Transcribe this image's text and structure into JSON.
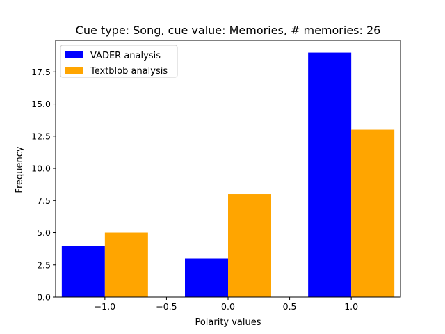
{
  "chart_data": {
    "type": "bar",
    "title": "Cue type: Song, cue value: Memories, # memories: 26",
    "xlabel": "Polarity values",
    "ylabel": "Frequency",
    "categories": [
      -1.0,
      0.0,
      1.0
    ],
    "series": [
      {
        "name": "VADER analysis",
        "color": "#0000ff",
        "values": [
          4,
          3,
          19
        ]
      },
      {
        "name": "Textblob analysis",
        "color": "#ffa500",
        "values": [
          5,
          8,
          13
        ]
      }
    ],
    "xlim": [
      -1.4,
      1.4
    ],
    "ylim": [
      0,
      19.95
    ],
    "xticks": [
      {
        "value": -1.0,
        "label": "−1.0"
      },
      {
        "value": -0.5,
        "label": "−0.5"
      },
      {
        "value": 0.0,
        "label": "0.0"
      },
      {
        "value": 0.5,
        "label": "0.5"
      },
      {
        "value": 1.0,
        "label": "1.0"
      }
    ],
    "yticks": [
      {
        "value": 0.0,
        "label": "0.0"
      },
      {
        "value": 2.5,
        "label": "2.5"
      },
      {
        "value": 5.0,
        "label": "5.0"
      },
      {
        "value": 7.5,
        "label": "7.5"
      },
      {
        "value": 10.0,
        "label": "10.0"
      },
      {
        "value": 12.5,
        "label": "12.5"
      },
      {
        "value": 15.0,
        "label": "15.0"
      },
      {
        "value": 17.5,
        "label": "17.5"
      }
    ],
    "bar_width": 0.35,
    "grid": false,
    "legend_position": "top-left"
  }
}
